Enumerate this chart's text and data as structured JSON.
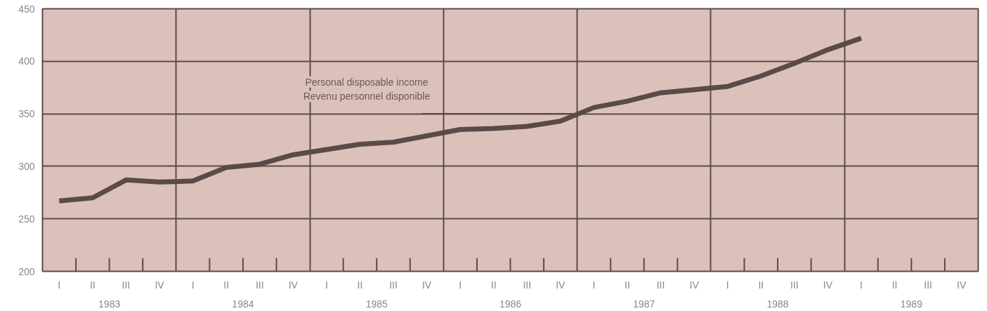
{
  "chart_data": {
    "type": "line",
    "categories": [
      "I",
      "II",
      "III",
      "IV",
      "I",
      "II",
      "III",
      "IV",
      "I",
      "II",
      "III",
      "IV",
      "I",
      "II",
      "III",
      "IV",
      "I",
      "II",
      "III",
      "IV",
      "I",
      "II",
      "III",
      "IV",
      "I",
      "II",
      "III",
      "IV"
    ],
    "series": [
      {
        "name": "Personal disposable income\nRevenu personnel disponible",
        "color": "#5a4a48",
        "values": [
          267,
          270,
          287,
          285,
          286,
          299,
          302,
          311,
          316,
          321,
          323,
          329,
          335,
          336,
          338,
          343,
          356,
          362,
          370,
          373,
          376,
          386,
          398,
          411,
          422,
          null,
          null,
          null
        ]
      }
    ],
    "annotations": [
      "1983",
      "1984",
      "1985",
      "1986",
      "1987",
      "1988",
      "1989"
    ],
    "ylim": [
      200,
      450
    ],
    "yticks": [
      200,
      250,
      300,
      350,
      400,
      450
    ],
    "grid": true,
    "marker": "none",
    "line_style": "solid"
  }
}
